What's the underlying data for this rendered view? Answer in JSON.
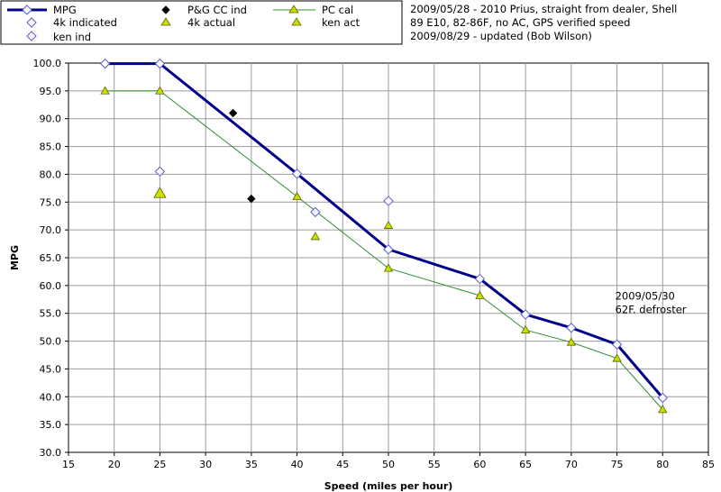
{
  "chart_data": {
    "type": "line",
    "title": "",
    "xlabel": "Speed (miles per hour)",
    "ylabel": "MPG",
    "xlim": [
      15,
      85
    ],
    "ylim": [
      30,
      100
    ],
    "x_ticks": [
      "15",
      "20",
      "25",
      "30",
      "35",
      "40",
      "45",
      "50",
      "55",
      "60",
      "65",
      "70",
      "75",
      "80",
      "85"
    ],
    "y_ticks": [
      "30.0",
      "35.0",
      "40.0",
      "45.0",
      "50.0",
      "55.0",
      "60.0",
      "65.0",
      "70.0",
      "75.0",
      "80.0",
      "85.0",
      "90.0",
      "95.0",
      "100.0"
    ],
    "grid": true,
    "legend_position": "top-left",
    "notes": [
      "2009/05/28 - 2010 Prius, straight from dealer, Shell",
      "89 E10, 82-86F, no AC, GPS verified speed",
      "2009/08/29 - updated (Bob Wilson)"
    ],
    "annotation": {
      "lines": [
        "2009/05/30",
        "62F. defroster"
      ],
      "x": 75,
      "y": 57.5
    },
    "series": [
      {
        "name": "MPG",
        "style": "line-diamond",
        "color": "#00008B",
        "points": [
          [
            19,
            99.9
          ],
          [
            25,
            99.9
          ],
          [
            40,
            80.1
          ],
          [
            50,
            66.5
          ],
          [
            60,
            61.2
          ],
          [
            65,
            54.8
          ],
          [
            70,
            52.4
          ],
          [
            75,
            49.4
          ],
          [
            80,
            39.8
          ]
        ]
      },
      {
        "name": "4k indicated",
        "style": "diamond-open",
        "color": "#5A5ACF",
        "points": [
          [
            25,
            80.5
          ]
        ]
      },
      {
        "name": "ken ind",
        "style": "diamond-open",
        "color": "#5A5ACF",
        "points": [
          [
            42,
            73.2
          ],
          [
            50,
            75.2
          ]
        ]
      },
      {
        "name": "P&G CC ind",
        "style": "diamond-filled",
        "color": "#000000",
        "points": [
          [
            33,
            91.0
          ],
          [
            35,
            75.6
          ]
        ]
      },
      {
        "name": "4k actual",
        "style": "triangle-large",
        "color": "#CCDD00",
        "points": [
          [
            25,
            76.6
          ]
        ]
      },
      {
        "name": "PC cal",
        "style": "line-triangle",
        "color": "#2E8B2E",
        "points": [
          [
            19,
            95.0
          ],
          [
            25,
            95.0
          ],
          [
            40,
            76.0
          ],
          [
            50,
            63.1
          ],
          [
            60,
            58.2
          ],
          [
            65,
            52.0
          ],
          [
            70,
            49.8
          ],
          [
            75,
            46.9
          ],
          [
            80,
            37.7
          ]
        ]
      },
      {
        "name": "ken act",
        "style": "triangle",
        "color": "#CCDD00",
        "points": [
          [
            42,
            68.8
          ],
          [
            50,
            70.8
          ]
        ]
      }
    ]
  },
  "legend": {
    "mpg": "MPG",
    "indicated_4k": "4k indicated",
    "ken_ind": "ken ind",
    "pg_cc": "P&G CC ind",
    "actual_4k": "4k actual",
    "pc_cal": "PC cal",
    "ken_act": "ken act"
  }
}
